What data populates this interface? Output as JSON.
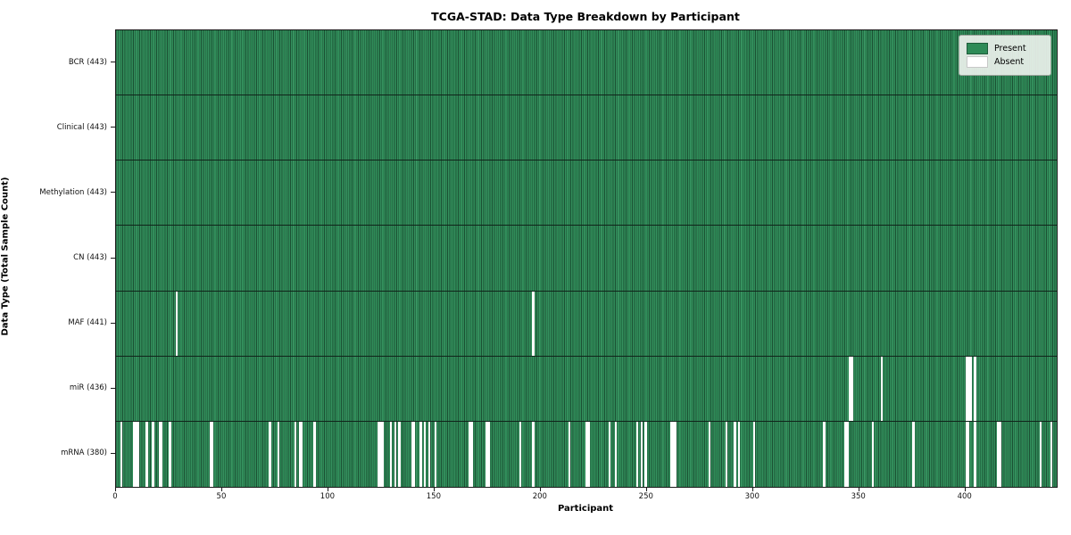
{
  "title": "TCGA-STAD: Data Type Breakdown by Participant",
  "chart_data": {
    "type": "heatmap",
    "title": "TCGA-STAD: Data Type Breakdown by Participant",
    "xlabel": "Participant",
    "ylabel": "Data Type (Total Sample Count)",
    "n_participants": 443,
    "x_ticks": [
      0,
      50,
      100,
      150,
      200,
      250,
      300,
      350,
      400
    ],
    "x_range": [
      0,
      443
    ],
    "grid": false,
    "legend_position": "upper right",
    "legend": [
      {
        "label": "Present",
        "color": "#2e8b57"
      },
      {
        "label": "Absent",
        "color": "#ffffff"
      }
    ],
    "colors": {
      "present": "#2e8b57",
      "absent": "#ffffff",
      "bar_edge": "#10241a"
    },
    "rows": [
      {
        "data_type": "BCR",
        "label": "BCR (443)",
        "present_count": 443,
        "absent_participants": []
      },
      {
        "data_type": "Clinical",
        "label": "Clinical (443)",
        "present_count": 443,
        "absent_participants": []
      },
      {
        "data_type": "Methylation",
        "label": "Methylation (443)",
        "present_count": 443,
        "absent_participants": []
      },
      {
        "data_type": "CN",
        "label": "CN (443)",
        "present_count": 443,
        "absent_participants": []
      },
      {
        "data_type": "MAF",
        "label": "MAF (441)",
        "present_count": 441,
        "absent_participants": [
          28,
          196
        ]
      },
      {
        "data_type": "miR",
        "label": "miR (436)",
        "present_count": 436,
        "absent_participants": [
          345,
          346,
          360,
          400,
          401,
          402,
          404
        ]
      },
      {
        "data_type": "mRNA",
        "label": "mRNA (380)",
        "present_count": 380,
        "absent_participants": [
          2,
          8,
          9,
          10,
          14,
          17,
          20,
          21,
          25,
          44,
          45,
          72,
          76,
          84,
          86,
          87,
          93,
          123,
          124,
          125,
          129,
          131,
          133,
          139,
          140,
          143,
          145,
          147,
          150,
          166,
          167,
          174,
          175,
          190,
          196,
          213,
          221,
          222,
          232,
          235,
          245,
          247,
          249,
          261,
          262,
          263,
          279,
          287,
          291,
          293,
          300,
          333,
          343,
          344,
          356,
          375,
          400,
          401,
          404,
          415,
          416,
          435,
          440
        ]
      }
    ]
  }
}
